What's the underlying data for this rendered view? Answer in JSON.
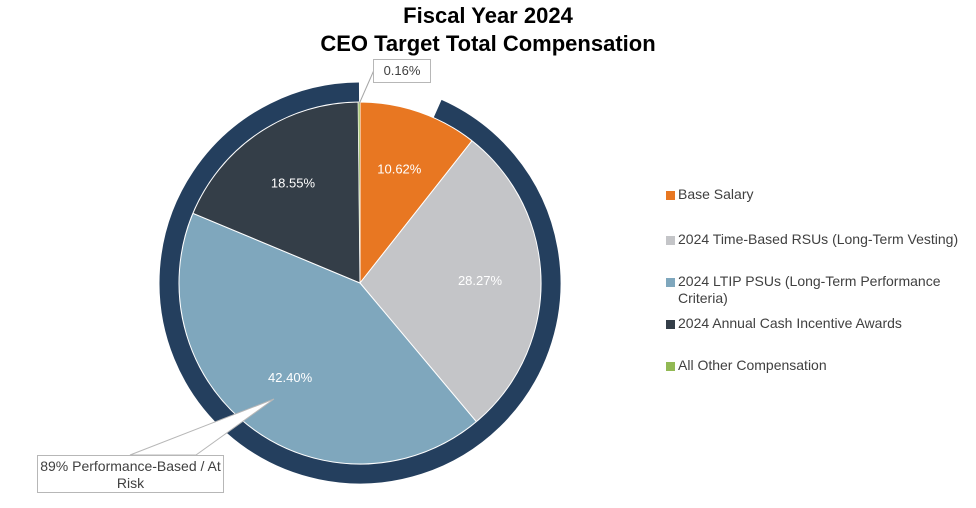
{
  "chart_data": {
    "type": "pie",
    "title": "Fiscal Year 2024",
    "subtitle": "CEO Target Total Compensation",
    "categories": [
      "Base Salary",
      "2024 Time-Based RSUs (Long-Term Vesting)",
      "2024 LTIP PSUs (Long-Term Performance Criteria)",
      "2024 Annual Cash Incentive Awards",
      "All Other Compensation"
    ],
    "values": [
      10.62,
      28.27,
      42.4,
      18.55,
      0.16
    ],
    "value_labels": [
      "10.62%",
      "28.27%",
      "42.40%",
      "18.55%",
      "0.16%"
    ],
    "colors": [
      "#E87722",
      "#C4C5C8",
      "#7FA7BD",
      "#343E48",
      "#92B954"
    ],
    "legend_placement": "right",
    "annotations": {
      "ring_color": "#243F5E",
      "ring_label": "89% Performance-Based / At Risk"
    }
  }
}
